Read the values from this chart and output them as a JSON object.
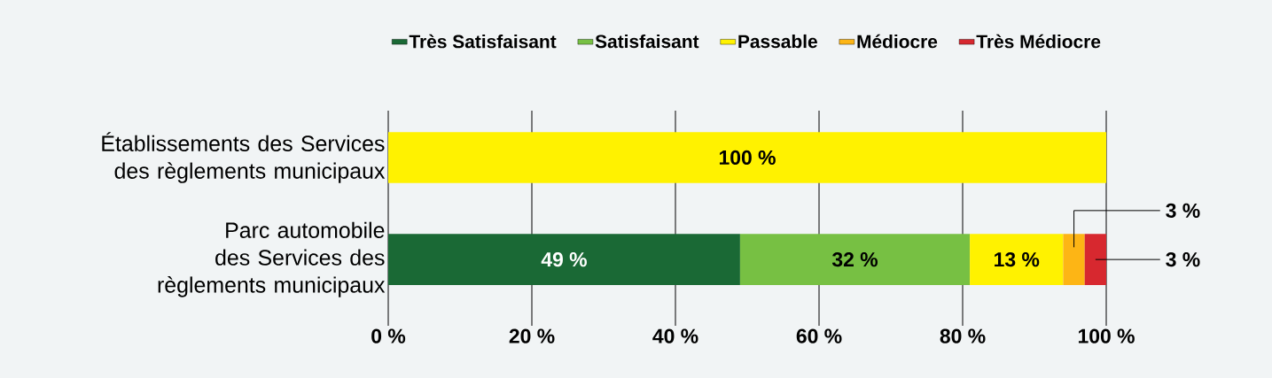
{
  "chart_data": {
    "type": "bar",
    "orientation": "horizontal",
    "stacked": true,
    "categories": [
      "Établissements des Services des règlements municipaux",
      "Parc automobile des Services des règlements municipaux"
    ],
    "series": [
      {
        "name": "Très Satisfaisant",
        "color": "#1a6935",
        "values": [
          null,
          49
        ],
        "value_labels": [
          null,
          "49 %"
        ]
      },
      {
        "name": "Satisfaisant",
        "color": "#77c043",
        "values": [
          null,
          32
        ],
        "value_labels": [
          null,
          "32 %"
        ]
      },
      {
        "name": "Passable",
        "color": "#fff200",
        "values": [
          100,
          13
        ],
        "value_labels": [
          "100 %",
          "13 %"
        ]
      },
      {
        "name": "Médiocre",
        "color": "#fdb515",
        "values": [
          null,
          3
        ],
        "value_labels": [
          null,
          "3 %"
        ]
      },
      {
        "name": "Très Médiocre",
        "color": "#d7282f",
        "values": [
          null,
          3
        ],
        "value_labels": [
          null,
          "3 %"
        ]
      }
    ],
    "xlim": [
      0,
      100
    ],
    "xticks": [
      {
        "value": 0,
        "label": "0 %"
      },
      {
        "value": 20,
        "label": "20 %"
      },
      {
        "value": 40,
        "label": "40 %"
      },
      {
        "value": 60,
        "label": "60 %"
      },
      {
        "value": 80,
        "label": "80 %"
      },
      {
        "value": 100,
        "label": "100 %"
      }
    ],
    "grid": "x",
    "legend": "top"
  }
}
